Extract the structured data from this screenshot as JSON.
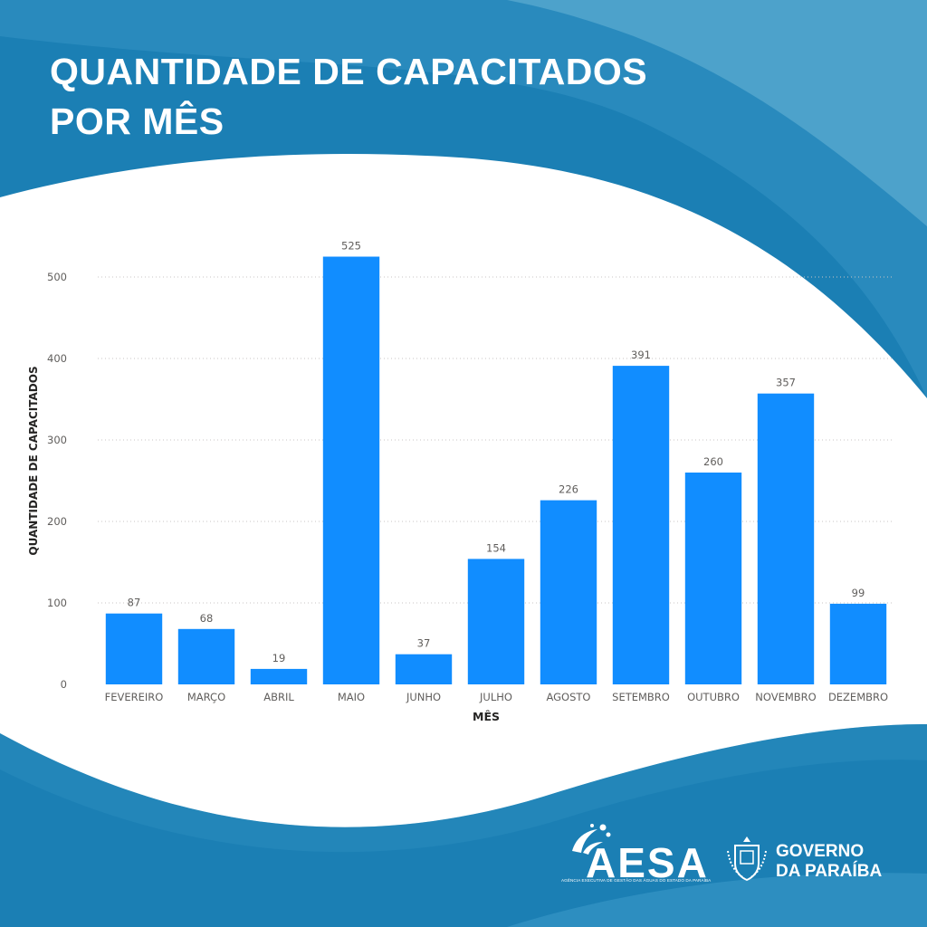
{
  "title": {
    "line1": "QUANTIDADE DE CAPACITADOS",
    "line2": "POR MÊS"
  },
  "colors": {
    "background_dark": "#1b7fb4",
    "background_mid": "#3594c4",
    "background_light": "#6ab3d3",
    "panel": "#ffffff",
    "bar": "#118dff",
    "text": "#252423",
    "axis_text": "#605e5c"
  },
  "chart_data": {
    "type": "bar",
    "title": "",
    "xlabel": "MÊS",
    "ylabel": "QUANTIDADE DE CAPACITADOS",
    "categories": [
      "FEVEREIRO",
      "MARÇO",
      "ABRIL",
      "MAIO",
      "JUNHO",
      "JULHO",
      "AGOSTO",
      "SETEMBRO",
      "OUTUBRO",
      "NOVEMBRO",
      "DEZEMBRO"
    ],
    "values": [
      87,
      68,
      19,
      525,
      37,
      154,
      226,
      391,
      260,
      357,
      99
    ],
    "yticks": [
      0,
      100,
      200,
      300,
      400,
      500
    ],
    "ylim": [
      0,
      530
    ],
    "grid": true,
    "data_labels": true
  },
  "logos": {
    "aesa": {
      "name": "AESA",
      "subtitle": "AGÊNCIA EXECUTIVA DE GESTÃO DAS ÁGUAS DO ESTADO DA PARAÍBA",
      "icon": "water-splash-icon"
    },
    "governo": {
      "line1": "GOVERNO",
      "line2": "DA PARAÍBA",
      "icon": "state-coat-of-arms-icon"
    }
  }
}
